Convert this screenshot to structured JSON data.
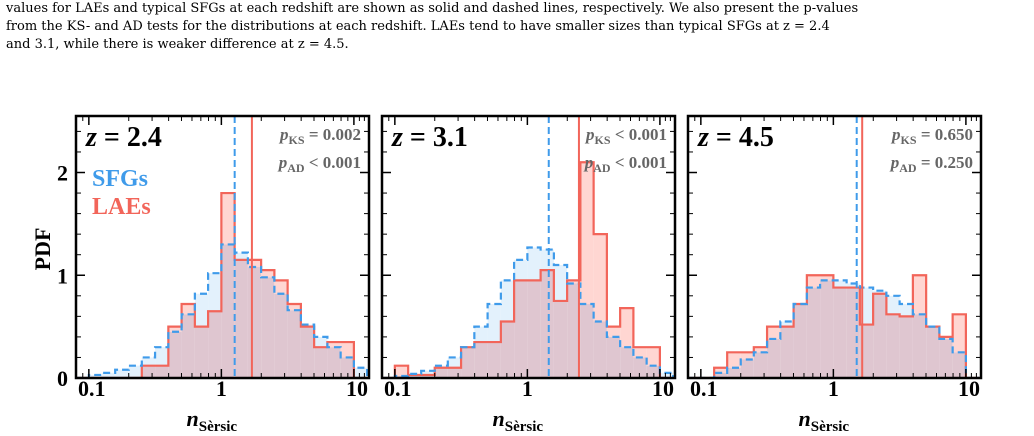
{
  "caption": {
    "line1": "values for LAEs and typical SFGs at each redshift are shown as solid and dashed lines, respectively. We also present the p-values",
    "line2": "from the KS- and AD tests for the distributions at each redshift. LAEs tend to have smaller sizes than typical SFGs at z = 2.4",
    "line3": "and 3.1, while there is weaker difference at z = 4.5."
  },
  "colors": {
    "sfg": "#3f9bea",
    "lae": "#f2655a",
    "sfg_fill": "#e3f1fc",
    "lae_fill": "#ffd6d2",
    "overlap": "#dfc6d0"
  },
  "chart_data": [
    {
      "type": "histogram",
      "label": "z = 2.4",
      "xlabel": "n_Sèrsic",
      "ylabel": "PDF",
      "xscale": "log",
      "xlim": [
        0.08,
        13
      ],
      "ylim": [
        0,
        2.55
      ],
      "xticks": [
        "0.1",
        "1",
        "10"
      ],
      "yticks": [
        "0",
        "1",
        "2"
      ],
      "legend": [
        "SFGs",
        "LAEs"
      ],
      "stats": {
        "p_KS": "= 0.002",
        "p_AD": "< 0.001"
      },
      "bin_edges": [
        0.079,
        0.1,
        0.126,
        0.158,
        0.2,
        0.251,
        0.316,
        0.398,
        0.501,
        0.631,
        0.794,
        1.0,
        1.259,
        1.585,
        1.995,
        2.512,
        3.162,
        3.981,
        5.012,
        6.31,
        7.943,
        10.0,
        12.589
      ],
      "series": [
        {
          "name": "SFGs",
          "style": "dashed",
          "median": 1.26,
          "values": [
            0,
            0.03,
            0.05,
            0.08,
            0.12,
            0.2,
            0.3,
            0.45,
            0.62,
            0.82,
            1.02,
            1.3,
            1.22,
            1.08,
            0.98,
            0.82,
            0.66,
            0.52,
            0.4,
            0.3,
            0.2,
            0.1
          ]
        },
        {
          "name": "LAEs",
          "style": "solid",
          "median": 1.7,
          "values": [
            0,
            0,
            0,
            0,
            0,
            0.12,
            0.12,
            0.5,
            0.72,
            0.5,
            0.65,
            1.8,
            1.15,
            1.15,
            1.05,
            0.95,
            0.72,
            0.5,
            0.3,
            0.35,
            0.35,
            0
          ]
        }
      ]
    },
    {
      "type": "histogram",
      "label": "z = 3.1",
      "xlabel": "n_Sèrsic",
      "xscale": "log",
      "xlim": [
        0.08,
        13
      ],
      "ylim": [
        0,
        2.55
      ],
      "xticks": [
        "0.1",
        "1",
        "10"
      ],
      "stats": {
        "p_KS": "< 0.001",
        "p_AD": "< 0.001"
      },
      "bin_edges": [
        0.079,
        0.1,
        0.126,
        0.158,
        0.2,
        0.251,
        0.316,
        0.398,
        0.501,
        0.631,
        0.794,
        1.0,
        1.259,
        1.585,
        1.995,
        2.512,
        3.162,
        3.981,
        5.012,
        6.31,
        7.943,
        10.0,
        12.589
      ],
      "series": [
        {
          "name": "SFGs",
          "style": "dashed",
          "median": 1.45,
          "values": [
            0,
            0.02,
            0.04,
            0.07,
            0.12,
            0.2,
            0.3,
            0.5,
            0.72,
            0.95,
            1.15,
            1.27,
            1.25,
            1.1,
            0.92,
            0.72,
            0.55,
            0.4,
            0.3,
            0.2,
            0.12,
            0.05
          ]
        },
        {
          "name": "LAEs",
          "style": "solid",
          "median": 2.45,
          "values": [
            0,
            0.12,
            0.03,
            0.03,
            0.1,
            0.1,
            0.3,
            0.35,
            0.35,
            0.55,
            0.95,
            0.95,
            1.05,
            0.75,
            0.95,
            2.1,
            1.4,
            0.5,
            0.68,
            0.3,
            0.3,
            0
          ]
        }
      ]
    },
    {
      "type": "histogram",
      "label": "z = 4.5",
      "xlabel": "n_Sèrsic",
      "xscale": "log",
      "xlim": [
        0.08,
        13
      ],
      "ylim": [
        0,
        2.55
      ],
      "xticks": [
        "0.1",
        "1",
        "10"
      ],
      "stats": {
        "p_KS": "= 0.650",
        "p_AD": "= 0.250"
      },
      "bin_edges": [
        0.079,
        0.1,
        0.126,
        0.158,
        0.2,
        0.251,
        0.316,
        0.398,
        0.501,
        0.631,
        0.794,
        1.0,
        1.259,
        1.585,
        1.995,
        2.512,
        3.162,
        3.981,
        5.012,
        6.31,
        7.943,
        10.0,
        12.589
      ],
      "series": [
        {
          "name": "SFGs",
          "style": "dashed",
          "median": 1.5,
          "values": [
            0,
            0,
            0.05,
            0.1,
            0.18,
            0.25,
            0.38,
            0.55,
            0.72,
            0.88,
            0.95,
            0.95,
            0.92,
            0.88,
            0.85,
            0.8,
            0.72,
            0.62,
            0.5,
            0.38,
            0.25,
            0
          ]
        },
        {
          "name": "LAEs",
          "style": "solid",
          "median": 1.65,
          "values": [
            0,
            0,
            0.1,
            0.25,
            0.25,
            0.3,
            0.5,
            0.5,
            0.72,
            1.0,
            1.0,
            0.88,
            0.88,
            0.52,
            0.82,
            0.62,
            0.6,
            1.0,
            0.5,
            0.4,
            0.62,
            0
          ]
        }
      ]
    }
  ]
}
